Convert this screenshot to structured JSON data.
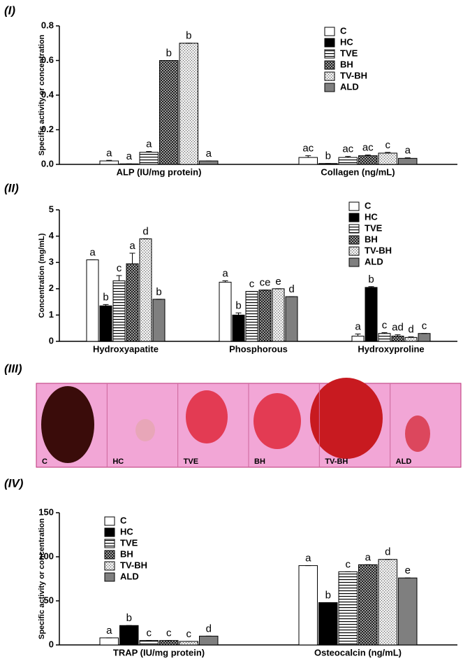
{
  "panel_labels": [
    "(I)",
    "(II)",
    "(III)",
    "(IV)"
  ],
  "photos": {
    "labels": [
      "C",
      "HC",
      "TVE",
      "BH",
      "TV-BH",
      "ALD"
    ]
  },
  "chart_data": [
    {
      "type": "bar",
      "ylabel": "Specific activity or concentration",
      "categories": [
        "ALP (IU/mg protein)",
        "Collagen (ng/mL)"
      ],
      "ylim": [
        0,
        0.8
      ],
      "yticks": [
        {
          "value": 0,
          "label": "0.0"
        },
        0.2,
        0.4,
        0.6,
        0.8
      ],
      "legend": "upper right",
      "series": [
        {
          "name": "C",
          "color": "#ffffff",
          "pattern": "solid",
          "values": [
            0.02,
            0.04
          ],
          "errors": [
            0.003,
            0.01
          ],
          "letters": [
            "a",
            "ac"
          ]
        },
        {
          "name": "HC",
          "color": "#000000",
          "pattern": "solid",
          "values": [
            0.003,
            0.005
          ],
          "errors": [
            0,
            0
          ],
          "letters": [
            "a",
            "b"
          ]
        },
        {
          "name": "TVE",
          "color": "#ffffff",
          "pattern": "hlines",
          "values": [
            0.07,
            0.04
          ],
          "errors": [
            0.004,
            0.006
          ],
          "letters": [
            "a",
            "ac"
          ]
        },
        {
          "name": "BH",
          "color": "#9a9a9a",
          "pattern": "checker",
          "values": [
            0.6,
            0.05
          ],
          "errors": [
            0,
            0.004
          ],
          "letters": [
            "b",
            "ac"
          ]
        },
        {
          "name": "TV-BH",
          "color": "#e8e8e8",
          "pattern": "dots",
          "values": [
            0.7,
            0.065
          ],
          "errors": [
            0,
            0.004
          ],
          "letters": [
            "b",
            "c"
          ]
        },
        {
          "name": "ALD",
          "color": "#7f7f7f",
          "pattern": "solid",
          "values": [
            0.02,
            0.035
          ],
          "errors": [
            0,
            0.003
          ],
          "letters": [
            "a",
            "a"
          ]
        }
      ]
    },
    {
      "type": "bar",
      "ylabel": "Concentration (mg/mL)",
      "categories": [
        "Hydroxyapatite",
        "Phosphorous",
        "Hydroxyproline"
      ],
      "ylim": [
        0,
        5
      ],
      "yticks": [
        0,
        1,
        2,
        3,
        4,
        5
      ],
      "legend": "upper right",
      "series": [
        {
          "name": "C",
          "color": "#ffffff",
          "pattern": "solid",
          "values": [
            3.1,
            2.25,
            0.2
          ],
          "errors": [
            0,
            0.05,
            0.08
          ],
          "letters": [
            "a",
            "a",
            "a"
          ]
        },
        {
          "name": "HC",
          "color": "#000000",
          "pattern": "solid",
          "values": [
            1.35,
            1.0,
            2.05
          ],
          "errors": [
            0.05,
            0.08,
            0.03
          ],
          "letters": [
            "b",
            "b",
            "b"
          ]
        },
        {
          "name": "TVE",
          "color": "#ffffff",
          "pattern": "hlines",
          "values": [
            2.3,
            1.9,
            0.3
          ],
          "errors": [
            0.2,
            0,
            0.03
          ],
          "letters": [
            "c",
            "c",
            "c"
          ]
        },
        {
          "name": "BH",
          "color": "#9a9a9a",
          "pattern": "checker",
          "values": [
            2.95,
            1.95,
            0.2
          ],
          "errors": [
            0.4,
            0,
            0.05
          ],
          "letters": [
            "a",
            "ce",
            "ad"
          ]
        },
        {
          "name": "TV-BH",
          "color": "#e8e8e8",
          "pattern": "dots",
          "values": [
            3.9,
            2.0,
            0.15
          ],
          "errors": [
            0,
            0,
            0.02
          ],
          "letters": [
            "d",
            "e",
            "d"
          ]
        },
        {
          "name": "ALD",
          "color": "#7f7f7f",
          "pattern": "solid",
          "values": [
            1.6,
            1.7,
            0.3
          ],
          "errors": [
            0,
            0,
            0
          ],
          "letters": [
            "b",
            "d",
            "c"
          ]
        }
      ]
    },
    {
      "type": "bar",
      "ylabel": "Specific activity or concentration",
      "categories": [
        "TRAP (IU/mg protein)",
        "Osteocalcin (ng/mL)"
      ],
      "ylim": [
        0,
        150
      ],
      "yticks": [
        0,
        50,
        100,
        150
      ],
      "legend": "upper left",
      "series": [
        {
          "name": "C",
          "color": "#ffffff",
          "pattern": "solid",
          "values": [
            8,
            90
          ],
          "errors": [
            0,
            0
          ],
          "letters": [
            "a",
            "a"
          ]
        },
        {
          "name": "HC",
          "color": "#000000",
          "pattern": "solid",
          "values": [
            22,
            48
          ],
          "errors": [
            0,
            0
          ],
          "letters": [
            "b",
            "b"
          ]
        },
        {
          "name": "TVE",
          "color": "#ffffff",
          "pattern": "hlines",
          "values": [
            5,
            83
          ],
          "errors": [
            0,
            0
          ],
          "letters": [
            "c",
            "c"
          ]
        },
        {
          "name": "BH",
          "color": "#9a9a9a",
          "pattern": "checker",
          "values": [
            5,
            91
          ],
          "errors": [
            0,
            0
          ],
          "letters": [
            "c",
            "a"
          ]
        },
        {
          "name": "TV-BH",
          "color": "#e8e8e8",
          "pattern": "dots",
          "values": [
            4,
            97
          ],
          "errors": [
            0,
            0
          ],
          "letters": [
            "c",
            "d"
          ]
        },
        {
          "name": "ALD",
          "color": "#7f7f7f",
          "pattern": "solid",
          "values": [
            10,
            76
          ],
          "errors": [
            0,
            0
          ],
          "letters": [
            "d",
            "e"
          ]
        }
      ]
    }
  ]
}
